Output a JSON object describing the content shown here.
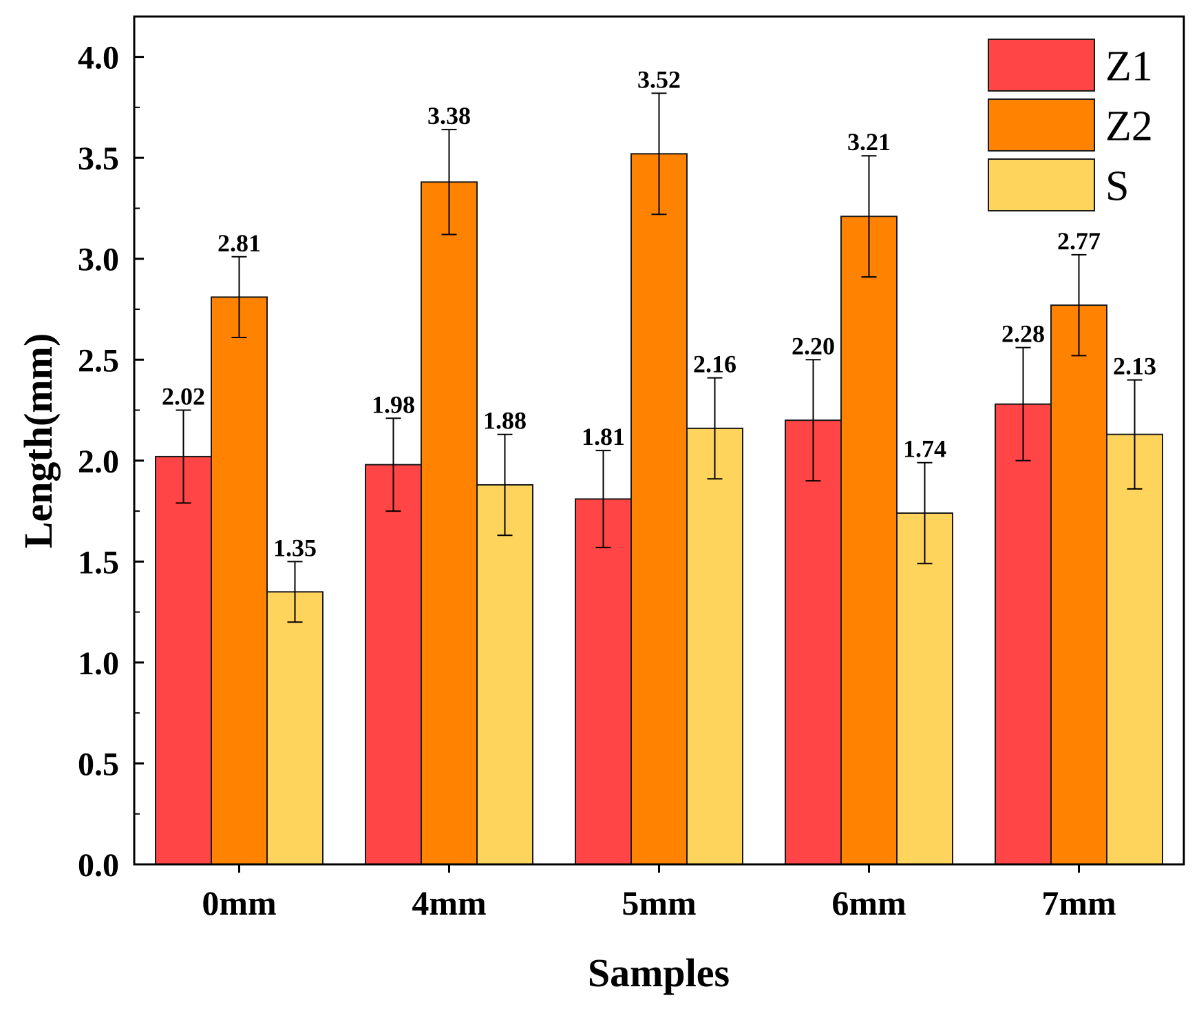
{
  "chart_data": {
    "type": "bar",
    "title": "",
    "xlabel": "Samples",
    "ylabel": "Length(mm)",
    "ylim": [
      0,
      4.2
    ],
    "yticks": [
      "0.0",
      "0.5",
      "1.0",
      "1.5",
      "2.0",
      "2.5",
      "3.0",
      "3.5",
      "4.0"
    ],
    "ytick_values": [
      0,
      0.5,
      1.0,
      1.5,
      2.0,
      2.5,
      3.0,
      3.5,
      4.0
    ],
    "categories": [
      "0mm",
      "4mm",
      "5mm",
      "6mm",
      "7mm"
    ],
    "legend_position": "top-right",
    "series": [
      {
        "name": "Z1",
        "color": "#FF4545",
        "values": [
          2.02,
          1.98,
          1.81,
          2.2,
          2.28
        ],
        "labels": [
          "2.02",
          "1.98",
          "1.81",
          "2.20",
          "2.28"
        ],
        "errors": [
          0.23,
          0.23,
          0.24,
          0.3,
          0.28
        ]
      },
      {
        "name": "Z2",
        "color": "#FF8300",
        "values": [
          2.81,
          3.38,
          3.52,
          3.21,
          2.77
        ],
        "labels": [
          "2.81",
          "3.38",
          "3.52",
          "3.21",
          "2.77"
        ],
        "errors": [
          0.2,
          0.26,
          0.3,
          0.3,
          0.25
        ]
      },
      {
        "name": "S",
        "color": "#FFD45C",
        "values": [
          1.35,
          1.88,
          2.16,
          1.74,
          2.13
        ],
        "labels": [
          "1.35",
          "1.88",
          "2.16",
          "1.74",
          "2.13"
        ],
        "errors": [
          0.15,
          0.25,
          0.25,
          0.25,
          0.27
        ]
      }
    ]
  }
}
